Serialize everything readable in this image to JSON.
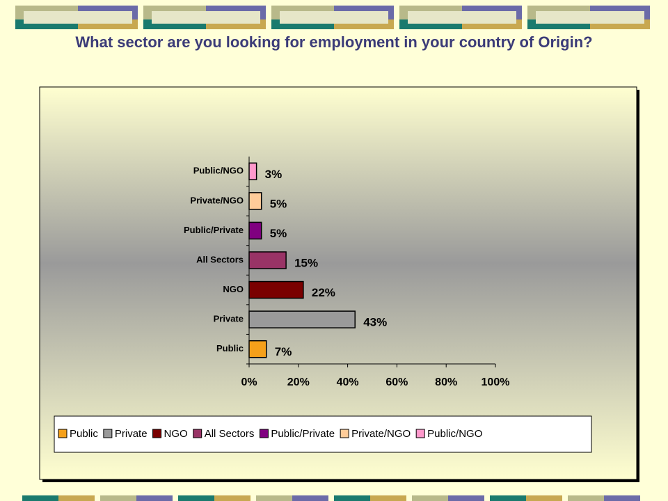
{
  "chart_data": {
    "type": "bar",
    "orientation": "horizontal",
    "title": "What sector are you looking for employment in your country of Origin?",
    "categories": [
      "Public",
      "Private",
      "NGO",
      "All Sectors",
      "Public/Private",
      "Private/NGO",
      "Public/NGO"
    ],
    "values": [
      7,
      43,
      22,
      15,
      5,
      5,
      3
    ],
    "value_labels": [
      "7%",
      "43%",
      "22%",
      "15%",
      "5%",
      "5%",
      "3%"
    ],
    "colors": [
      "#f5a01a",
      "#9a9a9a",
      "#7a0000",
      "#993366",
      "#800080",
      "#ffcc99",
      "#ff99cc"
    ],
    "xlim": [
      0,
      100
    ],
    "xticks": [
      {
        "value": 0,
        "label": "0%"
      },
      {
        "value": 20,
        "label": "20%"
      },
      {
        "value": 40,
        "label": "40%"
      },
      {
        "value": 60,
        "label": "60%"
      },
      {
        "value": 80,
        "label": "80%"
      },
      {
        "value": 100,
        "label": "100%"
      }
    ],
    "legend": "bottom"
  }
}
